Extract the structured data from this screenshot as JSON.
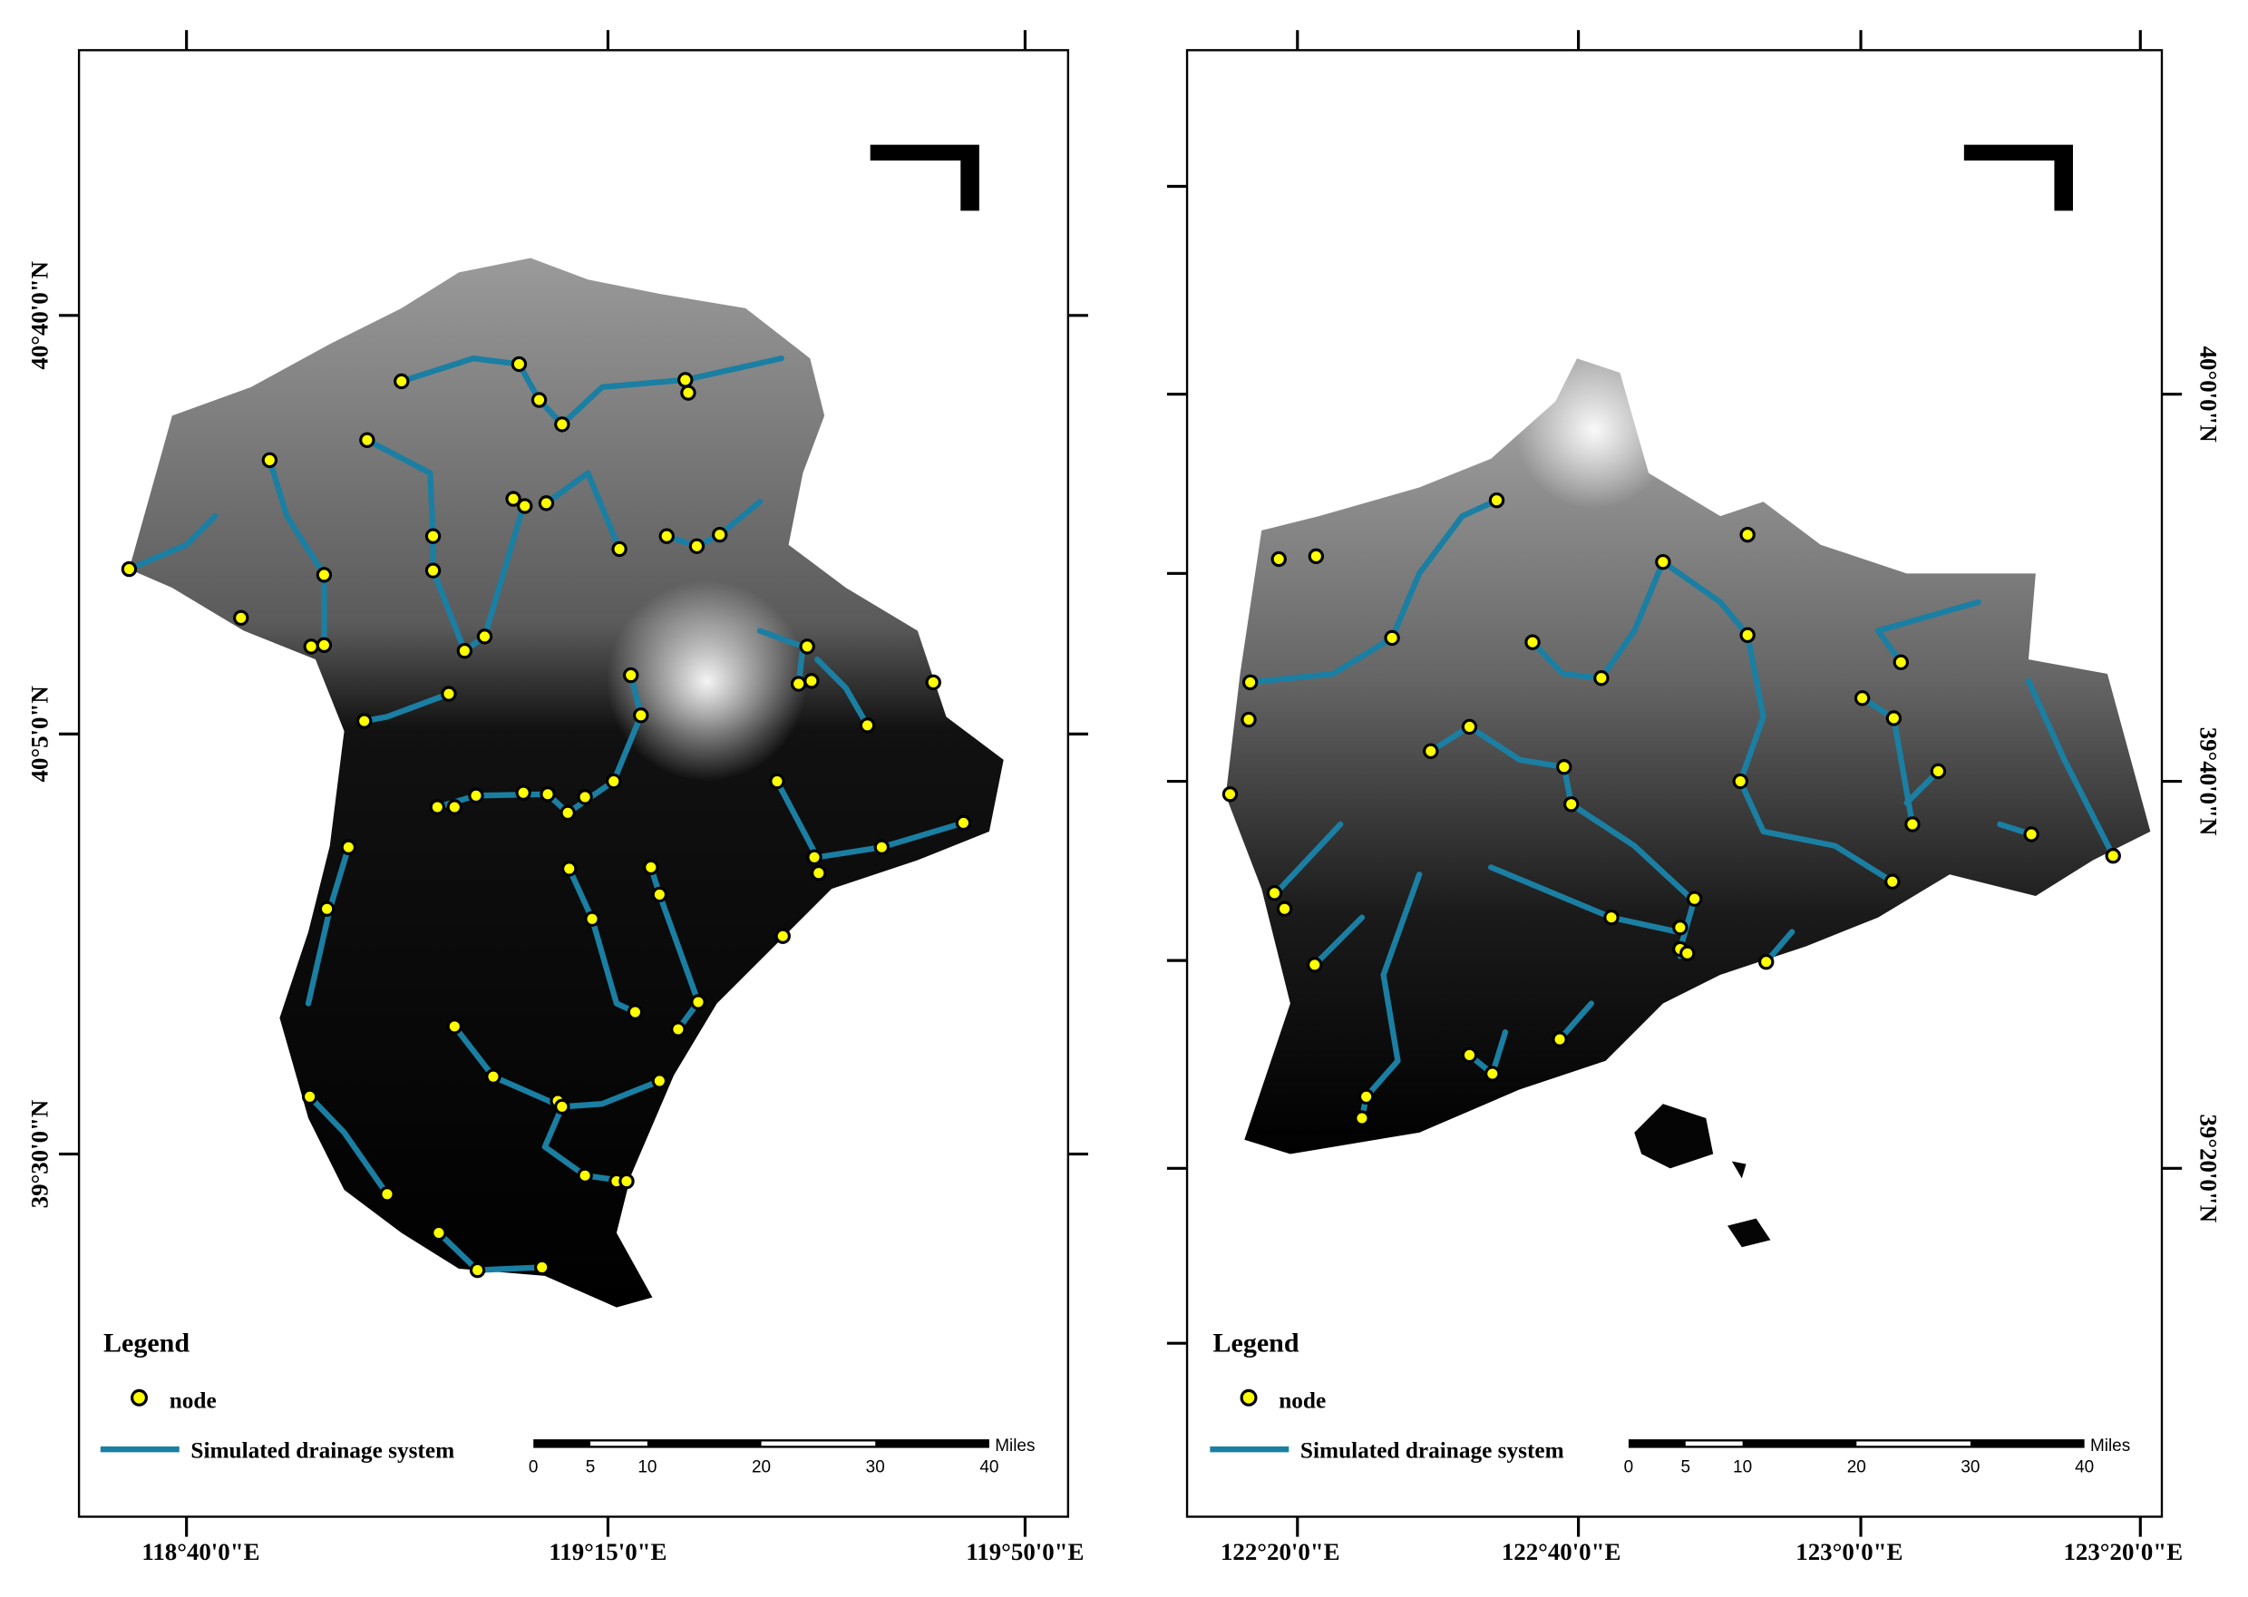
{
  "maps": [
    {
      "x_labels": [
        "118°40'0\"E",
        "119°15'0\"E",
        "119°50'0\"E"
      ],
      "y_labels": [
        "40°40'0\"N",
        "40°5'0\"N",
        "39°30'0\"N"
      ],
      "legend": {
        "title": "Legend",
        "items": [
          "node",
          "Simulated drainage system"
        ]
      },
      "scale": {
        "unit": "Miles",
        "ticks": [
          0,
          5,
          10,
          20,
          30,
          40
        ]
      }
    },
    {
      "x_labels": [
        "122°20'0\"E",
        "122°40'0\"E",
        "123°0'0\"E",
        "123°20'0\"E"
      ],
      "y_labels": [
        "40°0'0\"N",
        "39°40'0\"N",
        "39°20'0\"N"
      ],
      "legend": {
        "title": "Legend",
        "items": [
          "node",
          "Simulated drainage system"
        ]
      },
      "scale": {
        "unit": "Miles",
        "ticks": [
          0,
          5,
          10,
          20,
          30,
          40
        ]
      }
    }
  ]
}
